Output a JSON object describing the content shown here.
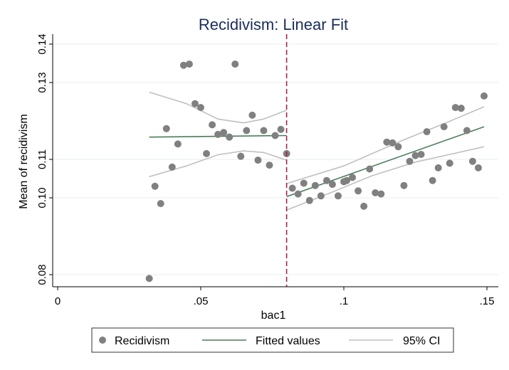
{
  "chart_data": {
    "type": "scatter",
    "title": "Recidivism: Linear Fit",
    "xlabel": "bac1",
    "ylabel": "Mean of recidivism",
    "xlim": [
      0,
      0.15
    ],
    "ylim": [
      0.08,
      0.14
    ],
    "x_ticks": [
      0,
      0.05,
      0.1,
      0.15
    ],
    "x_tick_labels": [
      "0",
      ".05",
      ".1",
      ".15"
    ],
    "y_ticks": [
      0.08,
      0.1,
      0.11,
      0.13,
      0.14
    ],
    "y_tick_labels": [
      "0.08",
      "0.10",
      "0.11",
      "0.13",
      "0.14"
    ],
    "grid": "horizontal",
    "cutoff": 0.08,
    "legend": {
      "position": "bottom",
      "items": [
        "Recidivism",
        "Fitted values",
        "95% CI"
      ]
    },
    "colors": {
      "points": "#808080",
      "fit": "#4a7c59",
      "ci": "#c0c0c0",
      "cutoff": "#a0234a",
      "title": "#1a2d5a",
      "grid": "#e8eef3"
    },
    "series": [
      {
        "name": "Recidivism",
        "type": "scatter",
        "points": [
          [
            0.032,
            0.079
          ],
          [
            0.034,
            0.103
          ],
          [
            0.036,
            0.0985
          ],
          [
            0.038,
            0.118
          ],
          [
            0.04,
            0.108
          ],
          [
            0.042,
            0.114
          ],
          [
            0.044,
            0.1345
          ],
          [
            0.046,
            0.1348
          ],
          [
            0.048,
            0.1245
          ],
          [
            0.05,
            0.1235
          ],
          [
            0.052,
            0.1115
          ],
          [
            0.054,
            0.119
          ],
          [
            0.056,
            0.1165
          ],
          [
            0.058,
            0.117
          ],
          [
            0.06,
            0.1158
          ],
          [
            0.062,
            0.1348
          ],
          [
            0.064,
            0.1108
          ],
          [
            0.066,
            0.1175
          ],
          [
            0.068,
            0.1215
          ],
          [
            0.07,
            0.1098
          ],
          [
            0.072,
            0.1175
          ],
          [
            0.074,
            0.1085
          ],
          [
            0.076,
            0.1162
          ],
          [
            0.078,
            0.1178
          ],
          [
            0.08,
            0.1115
          ],
          [
            0.082,
            0.1025
          ],
          [
            0.084,
            0.101
          ],
          [
            0.086,
            0.1038
          ],
          [
            0.088,
            0.0993
          ],
          [
            0.09,
            0.1032
          ],
          [
            0.092,
            0.1005
          ],
          [
            0.094,
            0.1045
          ],
          [
            0.096,
            0.1035
          ],
          [
            0.098,
            0.1005
          ],
          [
            0.1,
            0.1042
          ],
          [
            0.101,
            0.1045
          ],
          [
            0.103,
            0.1053
          ],
          [
            0.105,
            0.1018
          ],
          [
            0.107,
            0.0978
          ],
          [
            0.109,
            0.1075
          ],
          [
            0.111,
            0.1013
          ],
          [
            0.113,
            0.101
          ],
          [
            0.115,
            0.1145
          ],
          [
            0.117,
            0.1143
          ],
          [
            0.119,
            0.1133
          ],
          [
            0.121,
            0.1032
          ],
          [
            0.123,
            0.1095
          ],
          [
            0.125,
            0.111
          ],
          [
            0.127,
            0.1113
          ],
          [
            0.129,
            0.1172
          ],
          [
            0.131,
            0.1045
          ],
          [
            0.133,
            0.1078
          ],
          [
            0.135,
            0.1185
          ],
          [
            0.137,
            0.109
          ],
          [
            0.139,
            0.1235
          ],
          [
            0.141,
            0.1233
          ],
          [
            0.143,
            0.1175
          ],
          [
            0.145,
            0.1095
          ],
          [
            0.147,
            0.1078
          ],
          [
            0.149,
            0.1265
          ]
        ]
      },
      {
        "name": "Fitted values",
        "type": "line",
        "segments": [
          [
            [
              0.032,
              0.1158
            ],
            [
              0.08,
              0.1162
            ]
          ],
          [
            [
              0.08,
              0.1003
            ],
            [
              0.149,
              0.1185
            ]
          ]
        ]
      },
      {
        "name": "95% CI",
        "type": "line",
        "segments": [
          [
            [
              0.032,
              0.1275
            ],
            [
              0.045,
              0.1245
            ],
            [
              0.056,
              0.1205
            ],
            [
              0.065,
              0.1195
            ],
            [
              0.072,
              0.1205
            ],
            [
              0.08,
              0.1228
            ]
          ],
          [
            [
              0.032,
              0.1055
            ],
            [
              0.045,
              0.1083
            ],
            [
              0.056,
              0.1112
            ],
            [
              0.065,
              0.1122
            ],
            [
              0.072,
              0.1118
            ],
            [
              0.08,
              0.1098
            ]
          ],
          [
            [
              0.08,
              0.1037
            ],
            [
              0.1,
              0.1083
            ],
            [
              0.12,
              0.1148
            ],
            [
              0.135,
              0.1193
            ],
            [
              0.149,
              0.1237
            ]
          ],
          [
            [
              0.08,
              0.0968
            ],
            [
              0.095,
              0.1012
            ],
            [
              0.11,
              0.1058
            ],
            [
              0.125,
              0.1093
            ],
            [
              0.149,
              0.1133
            ]
          ]
        ]
      }
    ]
  }
}
